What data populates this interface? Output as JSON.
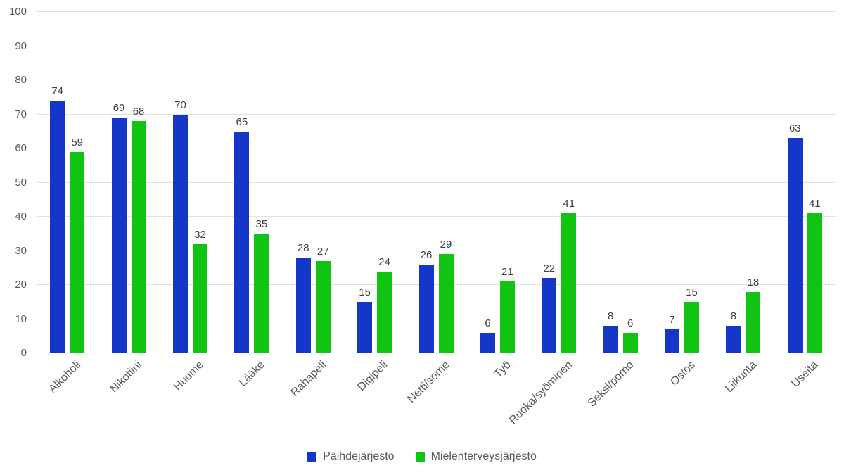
{
  "chart_data": {
    "type": "bar",
    "title": "",
    "categories": [
      "Alkoholi",
      "Nikotiini",
      "Huume",
      "Lääke",
      "Rahapeli",
      "Digipeli",
      "Netti/some",
      "Työ",
      "Ruoka/syöminen",
      "Seksi/porno",
      "Ostos",
      "Liikunta",
      "Useita"
    ],
    "series": [
      {
        "name": "Päihdejärjestö",
        "color": "#1437c9",
        "values": [
          74,
          69,
          70,
          65,
          28,
          15,
          26,
          6,
          22,
          8,
          7,
          8,
          63
        ]
      },
      {
        "name": "Mielenterveysjärjestö",
        "color": "#12c412",
        "values": [
          59,
          68,
          32,
          35,
          27,
          24,
          29,
          21,
          41,
          6,
          15,
          18,
          41
        ]
      }
    ],
    "xlabel": "",
    "ylabel": "",
    "ylim": [
      0,
      100
    ],
    "ytick_step": 10,
    "grid": true,
    "data_labels": true,
    "legend_position": "bottom",
    "style": {
      "grid_color": "#e2e2e2",
      "axis_text_color": "#595959",
      "data_label_color": "#404040",
      "background": "#ffffff"
    }
  }
}
